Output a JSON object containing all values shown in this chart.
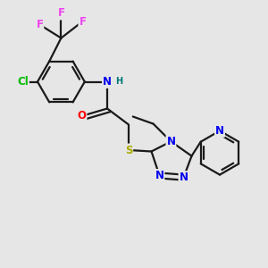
{
  "bg_color": "#e6e6e6",
  "bond_color": "#1a1a1a",
  "bond_width": 1.6,
  "colors": {
    "N": "#0000ee",
    "O": "#ff0000",
    "S": "#aaaa00",
    "Cl": "#00bb00",
    "F": "#ee44ee",
    "C": "#1a1a1a",
    "H": "#007777"
  },
  "font_size": 8.5,
  "font_size_small": 7.0
}
